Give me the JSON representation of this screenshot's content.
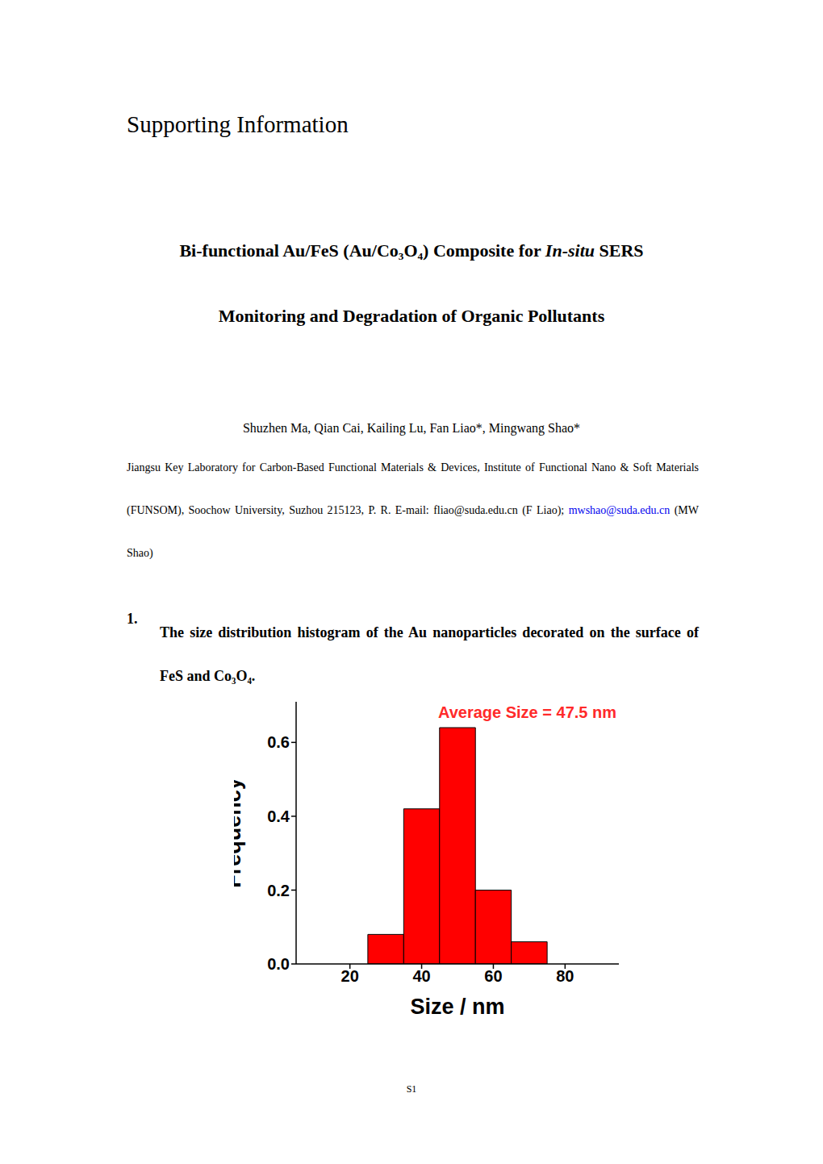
{
  "header": "Supporting Information",
  "title": {
    "lines": [
      [
        {
          "text": "Bi-functional Au/FeS (Au/Co₃O₄) Composite for "
        },
        {
          "text": "In-situ",
          "italic": true
        },
        {
          "text": " SERS"
        }
      ],
      [
        {
          "text": "Monitoring and Degradation of Organic Pollutants"
        }
      ]
    ]
  },
  "authors": "Shuzhen Ma, Qian Cai, Kailing Lu, Fan Liao*, Mingwang Shao*",
  "affiliation": "Jiangsu Key Laboratory for Carbon-Based Functional Materials & Devices, Institute of Functional Nano & Soft Materials (FUNSOM), Soochow University, Suzhou 215123, P. R. E-mail:",
  "emails": [
    {
      "address": "fliao@suda.edu.cn",
      "name": "(F Liao);"
    },
    {
      "address": "mwshao@suda.edu.cn",
      "name": "(MW Shao)"
    }
  ],
  "section": {
    "number": "1.",
    "title": "The size distribution histogram of the Au nanoparticles decorated on the surface of FeS and Co₃O₄."
  },
  "chart_data": {
    "type": "histogram",
    "bins": [
      25,
      35,
      45,
      55,
      65,
      75
    ],
    "values": [
      0.08,
      0.42,
      0.64,
      0.2,
      0.06
    ],
    "color": "#ff0000",
    "xlim": [
      5,
      95
    ],
    "ylim": [
      0,
      0.71
    ],
    "xticks": [
      20,
      40,
      60,
      80
    ],
    "yticks": [
      {
        "value": 0,
        "label": "0.0"
      },
      {
        "value": 0.2,
        "label": "0.2"
      },
      {
        "value": 0.4,
        "label": "0.4"
      },
      {
        "value": 0.6,
        "label": "0.6"
      }
    ],
    "x_label": "Size / nm",
    "y_label": "Frequency",
    "annotation": "Average Size = 47.5 nm"
  },
  "page_number": "S1"
}
